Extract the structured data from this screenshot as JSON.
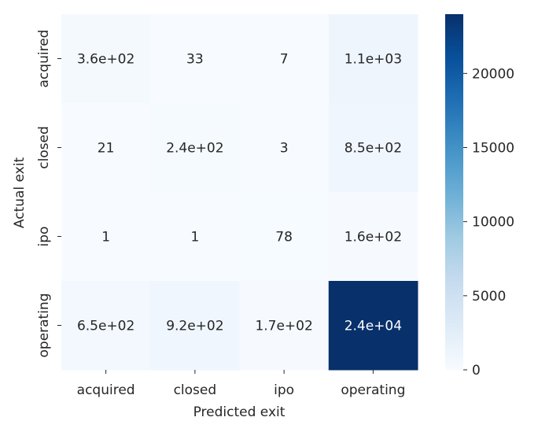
{
  "chart_data": {
    "type": "heatmap",
    "title": "",
    "xlabel": "Predicted exit",
    "ylabel": "Actual exit",
    "x_categories": [
      "acquired",
      "closed",
      "ipo",
      "operating"
    ],
    "y_categories": [
      "acquired",
      "closed",
      "ipo",
      "operating"
    ],
    "values": [
      [
        360,
        33,
        7,
        1100
      ],
      [
        21,
        240,
        3,
        850
      ],
      [
        1,
        1,
        78,
        160
      ],
      [
        650,
        920,
        170,
        24000
      ]
    ],
    "cell_labels": [
      [
        "3.6e+02",
        "33",
        "7",
        "1.1e+03"
      ],
      [
        "21",
        "2.4e+02",
        "3",
        "8.5e+02"
      ],
      [
        "1",
        "1",
        "78",
        "1.6e+02"
      ],
      [
        "6.5e+02",
        "9.2e+02",
        "1.7e+02",
        "2.4e+04"
      ]
    ],
    "colorbar": {
      "colormap": "Blues",
      "range": [
        0,
        24000
      ],
      "ticks": [
        0,
        5000,
        10000,
        15000,
        20000
      ],
      "tick_labels": [
        "0",
        "5000",
        "10000",
        "15000",
        "20000"
      ]
    }
  }
}
